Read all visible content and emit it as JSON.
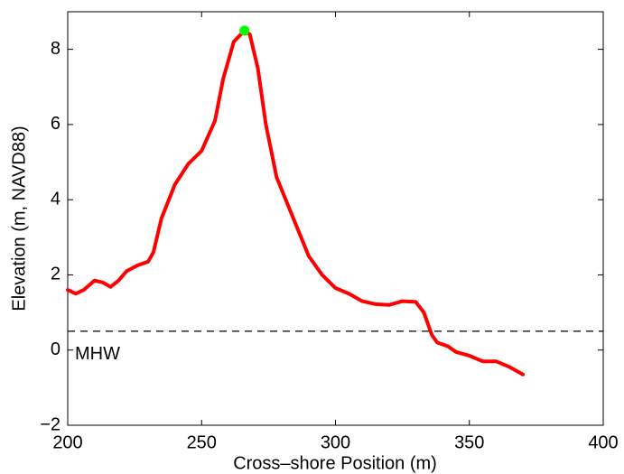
{
  "chart_data": {
    "type": "line",
    "xlabel": "Cross–shore Position (m)",
    "ylabel": "Elevation (m, NAVD88)",
    "x": [
      200,
      203,
      206,
      210,
      213,
      216,
      219,
      222,
      226,
      230,
      232,
      235,
      240,
      245,
      250,
      255,
      258,
      262,
      266,
      268,
      271,
      274,
      278,
      282,
      286,
      290,
      295,
      300,
      305,
      310,
      315,
      320,
      325,
      330,
      333,
      336,
      338,
      342,
      345,
      350,
      355,
      360,
      365,
      370
    ],
    "values": [
      1.6,
      1.5,
      1.6,
      1.85,
      1.8,
      1.68,
      1.85,
      2.1,
      2.25,
      2.35,
      2.6,
      3.5,
      4.4,
      4.95,
      5.3,
      6.1,
      7.2,
      8.2,
      8.5,
      8.4,
      7.5,
      6.0,
      4.6,
      3.9,
      3.2,
      2.5,
      2.0,
      1.65,
      1.5,
      1.3,
      1.22,
      1.2,
      1.3,
      1.28,
      1.0,
      0.4,
      0.2,
      0.1,
      -0.05,
      -0.15,
      -0.3,
      -0.3,
      -0.45,
      -0.65
    ],
    "color": "#ff0000",
    "peak": {
      "x": 266,
      "y": 8.5,
      "color": "#00ff00"
    },
    "reference_line": {
      "value": 0.5,
      "label": "MHW",
      "color": "#000000"
    },
    "xlim": [
      200,
      400
    ],
    "xticks": [
      200,
      250,
      300,
      350,
      400
    ],
    "ylim": [
      -2,
      9
    ],
    "yticks": [
      {
        "value": -2,
        "label": "−2"
      },
      0,
      2,
      4,
      6,
      8
    ]
  }
}
